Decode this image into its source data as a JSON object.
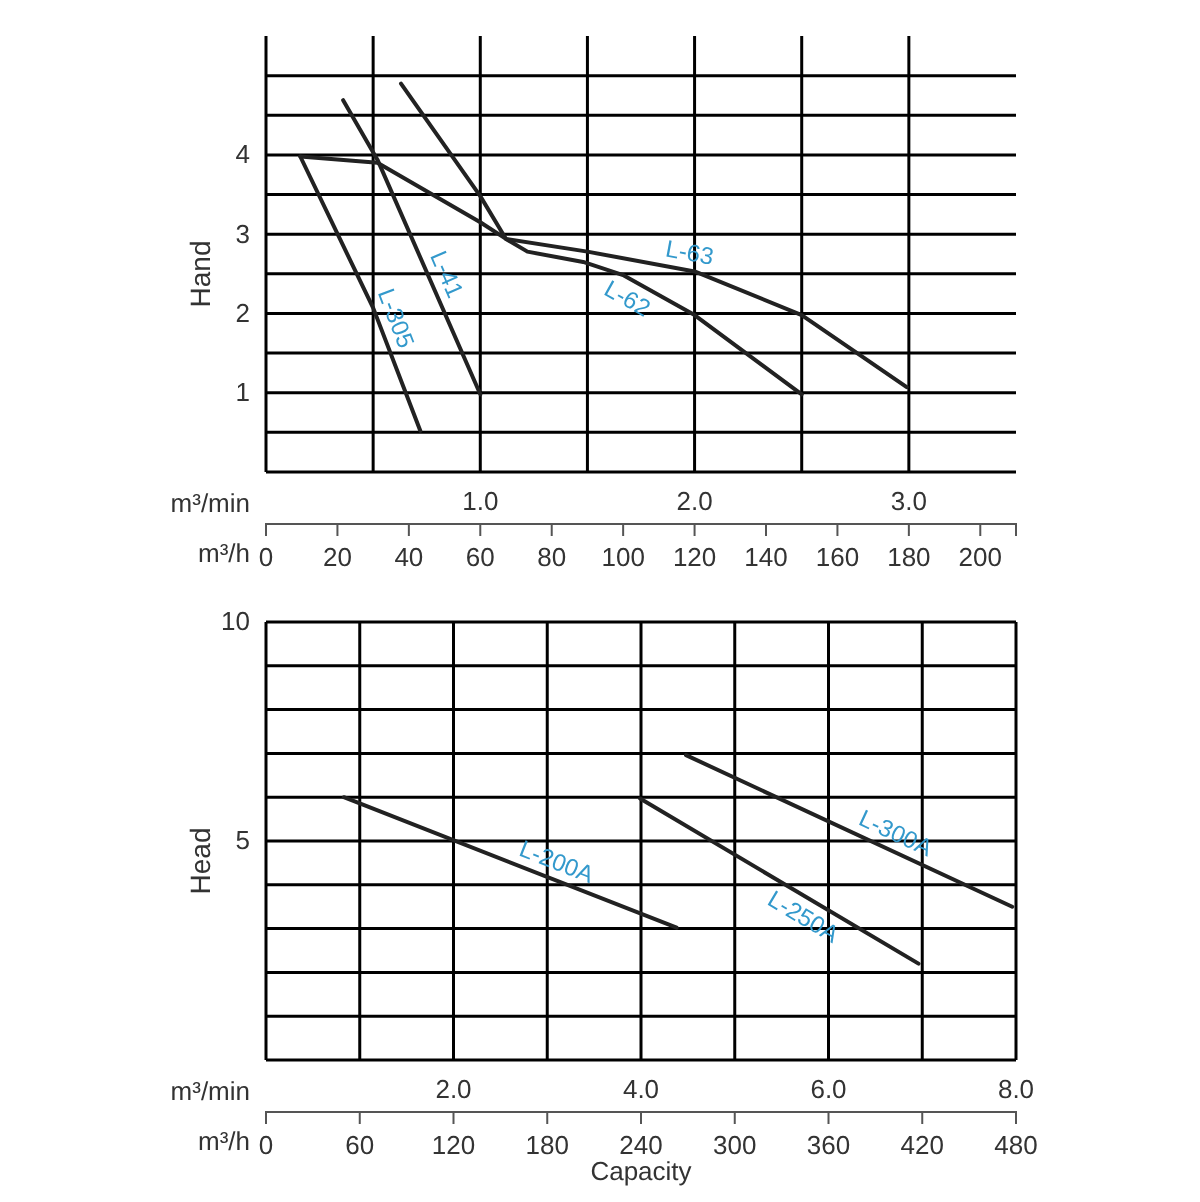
{
  "chart_data": [
    {
      "type": "line",
      "ylabel": "Hand",
      "xlabel": "m³/min",
      "x2label": "m³/h",
      "xlim": [
        0,
        3.5
      ],
      "ylim": [
        0,
        5.5
      ],
      "xticks": [
        {
          "value": 0.5,
          "label": null
        },
        {
          "value": 1,
          "label": "1.0"
        },
        {
          "value": 1.5,
          "label": null
        },
        {
          "value": 2,
          "label": "2.0"
        },
        {
          "value": 2.5,
          "label": null
        },
        {
          "value": 3,
          "label": "3.0"
        }
      ],
      "yticks": [
        {
          "value": 0.5,
          "label": null
        },
        1,
        {
          "value": 1.5,
          "label": null
        },
        2,
        {
          "value": 2.5,
          "label": null
        },
        3,
        {
          "value": 3.5,
          "label": null
        },
        4,
        {
          "value": 4.5,
          "label": null
        },
        {
          "value": 5,
          "label": null
        }
      ],
      "x2lim": [
        0,
        210
      ],
      "x2ticks": [
        0,
        20,
        40,
        60,
        80,
        100,
        120,
        140,
        160,
        180,
        200
      ],
      "grid": true,
      "series": [
        {
          "name": "L-305",
          "color": "#222222",
          "x": [
            0.16,
            0.5,
            0.72
          ],
          "values": [
            3.98,
            2.07,
            0.52
          ]
        },
        {
          "name": "L-41",
          "color": "#222222",
          "x": [
            0.36,
            0.52,
            1.0
          ],
          "values": [
            4.69,
            3.94,
            0.98
          ]
        },
        {
          "name": "L-62",
          "color": "#222222",
          "x": [
            0.63,
            1.0,
            1.12,
            1.22,
            1.48,
            1.67,
            2.0,
            2.5
          ],
          "values": [
            4.9,
            3.48,
            2.94,
            2.78,
            2.65,
            2.48,
            1.98,
            0.98
          ]
        },
        {
          "name": "L-63",
          "color": "#222222",
          "x": [
            0.16,
            0.52,
            1.0,
            1.12,
            1.5,
            2.0,
            2.5,
            2.99
          ],
          "values": [
            3.98,
            3.9,
            3.15,
            2.94,
            2.78,
            2.53,
            1.98,
            1.07
          ]
        }
      ]
    },
    {
      "type": "line",
      "ylabel": "Head",
      "xlabel": "m³/min",
      "x2label": "m³/h",
      "title": "Capacity",
      "xlim": [
        0,
        8
      ],
      "ylim": [
        0,
        10
      ],
      "xticks": [
        {
          "value": 1,
          "label": null
        },
        {
          "value": 2,
          "label": "2.0"
        },
        {
          "value": 3,
          "label": null
        },
        {
          "value": 4,
          "label": "4.0"
        },
        {
          "value": 5,
          "label": null
        },
        {
          "value": 6,
          "label": "6.0"
        },
        {
          "value": 7,
          "label": null
        },
        {
          "value": 8,
          "label": "8.0"
        }
      ],
      "yticks": [
        {
          "value": 1,
          "label": null
        },
        {
          "value": 2,
          "label": null
        },
        {
          "value": 3,
          "label": null
        },
        {
          "value": 4,
          "label": null
        },
        5,
        {
          "value": 6,
          "label": null
        },
        {
          "value": 7,
          "label": null
        },
        {
          "value": 8,
          "label": null
        },
        {
          "value": 9,
          "label": null
        },
        10
      ],
      "x2lim": [
        0,
        480
      ],
      "x2ticks": [
        0,
        60,
        120,
        180,
        240,
        300,
        360,
        420,
        480
      ],
      "grid": true,
      "series": [
        {
          "name": "L-200A",
          "color": "#222222",
          "x": [
            0.83,
            4.38
          ],
          "values": [
            6.0,
            3.02
          ]
        },
        {
          "name": "L-250A",
          "color": "#222222",
          "x": [
            3.99,
            6.96
          ],
          "values": [
            5.97,
            2.2
          ]
        },
        {
          "name": "L-300A",
          "color": "#222222",
          "x": [
            4.48,
            7.96
          ],
          "values": [
            6.96,
            3.5
          ]
        }
      ]
    }
  ]
}
